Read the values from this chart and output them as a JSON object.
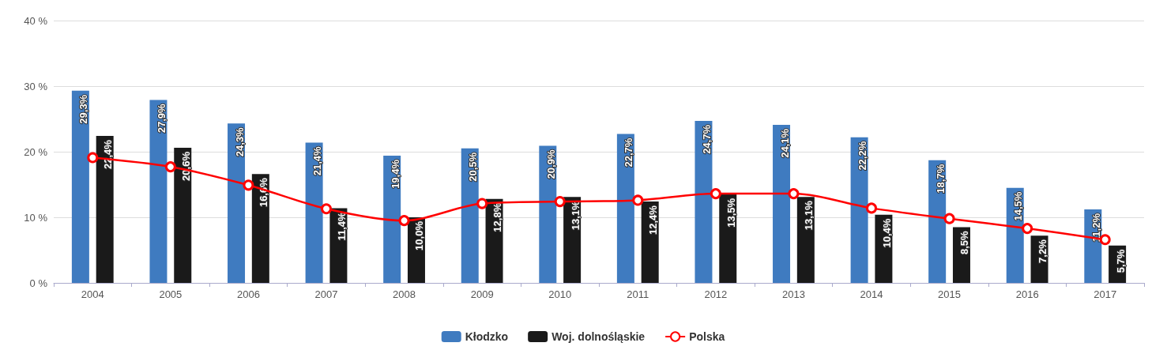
{
  "chart_data": {
    "type": "bar",
    "categories": [
      "2004",
      "2005",
      "2006",
      "2007",
      "2008",
      "2009",
      "2010",
      "2011",
      "2012",
      "2013",
      "2014",
      "2015",
      "2016",
      "2017"
    ],
    "series": [
      {
        "name": "Kłodzko",
        "color": "#3f7bc0",
        "values": [
          29.3,
          27.9,
          24.3,
          21.4,
          19.4,
          20.5,
          20.9,
          22.7,
          24.7,
          24.1,
          22.2,
          18.7,
          14.5,
          11.2
        ],
        "value_labels": [
          "29,3%",
          "27,9%",
          "24,3%",
          "21,4%",
          "19,4%",
          "20,5%",
          "20,9%",
          "22,7%",
          "24,7%",
          "24,1%",
          "22,2%",
          "18,7%",
          "14,5%",
          "11,2%"
        ]
      },
      {
        "name": "Woj. dolnośląskie",
        "color": "#1a1a1a",
        "values": [
          22.4,
          20.6,
          16.6,
          11.4,
          10.0,
          12.8,
          13.1,
          12.4,
          13.5,
          13.1,
          10.4,
          8.5,
          7.2,
          5.7
        ],
        "value_labels": [
          "22,4%",
          "20,6%",
          "16,6%",
          "11,4%",
          "10,0%",
          "12,8%",
          "13,1%",
          "12,4%",
          "13,5%",
          "13,1%",
          "10,4%",
          "8,5%",
          "7,2%",
          "5,7%"
        ]
      },
      {
        "name": "Polska",
        "type": "line",
        "color": "#ff0000",
        "marker": "circle",
        "values": [
          19.1,
          17.7,
          14.9,
          11.3,
          9.5,
          12.1,
          12.4,
          12.6,
          13.6,
          13.6,
          11.4,
          9.8,
          8.3,
          6.6
        ]
      }
    ],
    "ylim": [
      0,
      40
    ],
    "yticks": [
      {
        "value": 0,
        "label": "0 %"
      },
      {
        "value": 10,
        "label": "10 %"
      },
      {
        "value": 20,
        "label": "20 %"
      },
      {
        "value": 30,
        "label": "30 %"
      },
      {
        "value": 40,
        "label": "40 %"
      }
    ],
    "grid": "y",
    "legend": "bottom"
  }
}
